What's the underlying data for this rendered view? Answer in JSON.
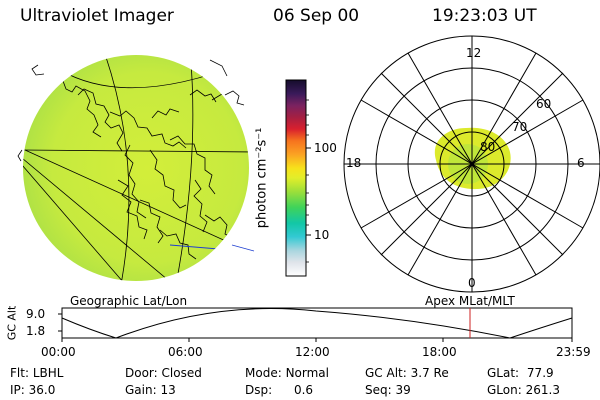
{
  "header": {
    "title": "Ultraviolet Imager",
    "date": "06 Sep 00",
    "time": "19:23:03 UT"
  },
  "colorbar": {
    "unit": "photon cm⁻²s⁻¹",
    "ticks": [
      "100",
      "10"
    ]
  },
  "polar": {
    "mlt_labels": {
      "top": "12",
      "left": "18",
      "right": "6",
      "bottom": "0"
    },
    "lat_labels": [
      "60",
      "70",
      "80"
    ]
  },
  "timeline": {
    "left_label": "Geographic Lat/Lon",
    "right_label": "Apex MLat/MLT",
    "axis_label": "GC Alt",
    "y_ticks": [
      "9.0",
      "1.8"
    ],
    "x_ticks": [
      "00:00",
      "06:00",
      "12:00",
      "18:00",
      "23:59"
    ]
  },
  "status": {
    "row1": [
      {
        "key": "Flt:",
        "value": "LBHL"
      },
      {
        "key": "Door:",
        "value": "Closed"
      },
      {
        "key": "Mode:",
        "value": "Normal"
      },
      {
        "key": "GC Alt:",
        "value": "3.7 Re"
      },
      {
        "key": "GLat:",
        "value": "77.9"
      }
    ],
    "row2": [
      {
        "key": "IP:",
        "value": "36.0"
      },
      {
        "key": "Gain:",
        "value": "13"
      },
      {
        "key": "Dsp:",
        "value": "0.6"
      },
      {
        "key": "Seq:",
        "value": "39"
      },
      {
        "key": "GLon:",
        "value": "261.3"
      }
    ]
  },
  "colors": {
    "disk": "#c6ea3f",
    "disk_edge": "#a8df47",
    "aurora": "#dcea2c",
    "aurora_core": "#b4e440",
    "marker": "#cc2222",
    "sight_line": "#1f3fd0"
  }
}
